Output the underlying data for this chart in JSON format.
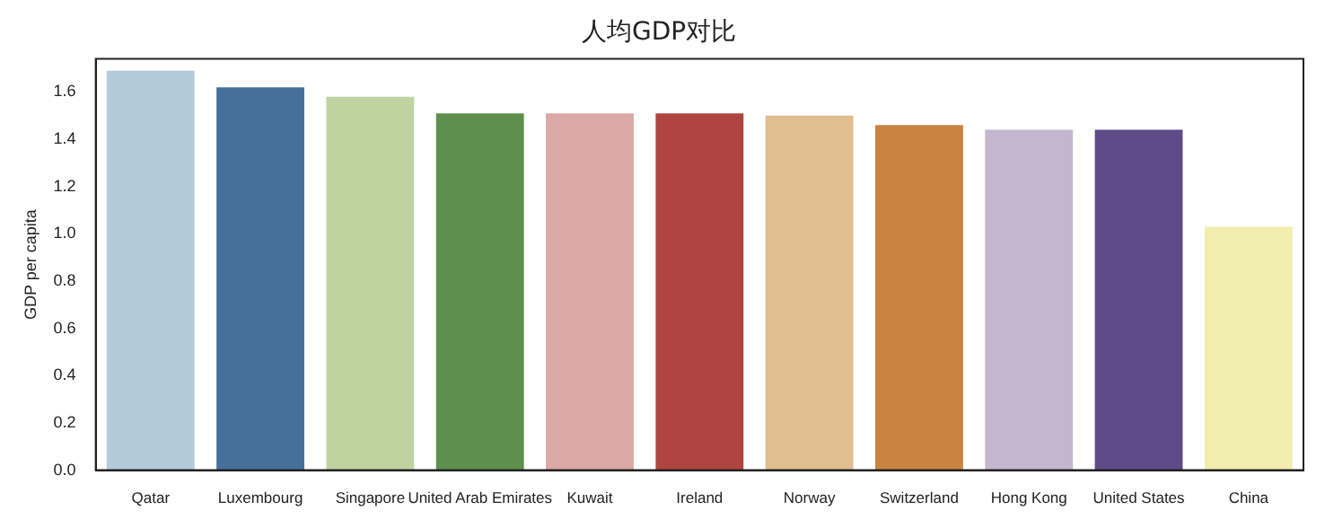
{
  "chart_data": {
    "type": "bar",
    "title": "人均GDP对比",
    "ylabel": "GDP per capita",
    "categories": [
      "Qatar",
      "Luxembourg",
      "Singapore",
      "United Arab Emirates",
      "Kuwait",
      "Ireland",
      "Norway",
      "Switzerland",
      "Hong Kong",
      "United States",
      "China"
    ],
    "values": [
      1.69,
      1.62,
      1.58,
      1.51,
      1.51,
      1.51,
      1.5,
      1.46,
      1.44,
      1.44,
      1.03
    ],
    "colors": [
      "#b3cadb",
      "#46709a",
      "#bfd3a0",
      "#5e8f4d",
      "#dba8a6",
      "#ae4540",
      "#e0be8f",
      "#c98442",
      "#c4b6ce",
      "#5d4a87",
      "#f2eeaf"
    ],
    "ylim": [
      0,
      1.74
    ],
    "yticks": [
      {
        "value": 0,
        "label": "0.0"
      },
      0.2,
      0.4,
      0.6,
      0.8,
      {
        "value": 1,
        "label": "1.0"
      },
      1.2,
      1.4,
      1.6
    ],
    "grid": false,
    "legend": false
  }
}
